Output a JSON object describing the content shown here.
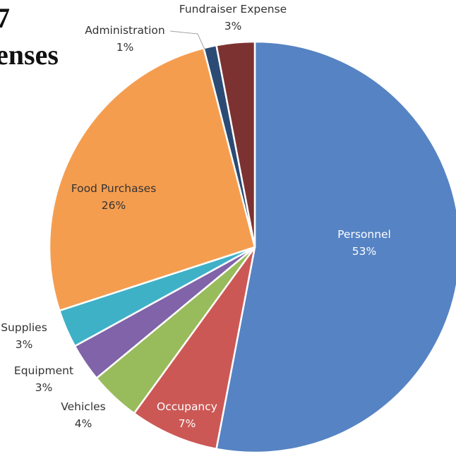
{
  "chart_data": {
    "type": "pie",
    "title_lines": [
      "7",
      "enses"
    ],
    "slices": [
      {
        "name": "Personnel",
        "value": 53,
        "label": "53%",
        "color": "#5683c3"
      },
      {
        "name": "Occupancy",
        "value": 7,
        "label": "7%",
        "color": "#cc5855"
      },
      {
        "name": "Vehicles",
        "value": 4,
        "label": "4%",
        "color": "#98bb5b"
      },
      {
        "name": "Equipment",
        "value": 3,
        "label": "3%",
        "color": "#8063a8"
      },
      {
        "name": "Supplies",
        "value": 3,
        "label": "3%",
        "color": "#3fb1c7"
      },
      {
        "name": "Food Purchases",
        "value": 26,
        "label": "26%",
        "color": "#f59d4f"
      },
      {
        "name": "Administration",
        "value": 1,
        "label": "1%",
        "color": "#2b4b74"
      },
      {
        "name": "Fundraiser Expense",
        "value": 3,
        "label": "3%",
        "color": "#7d3232"
      }
    ]
  }
}
